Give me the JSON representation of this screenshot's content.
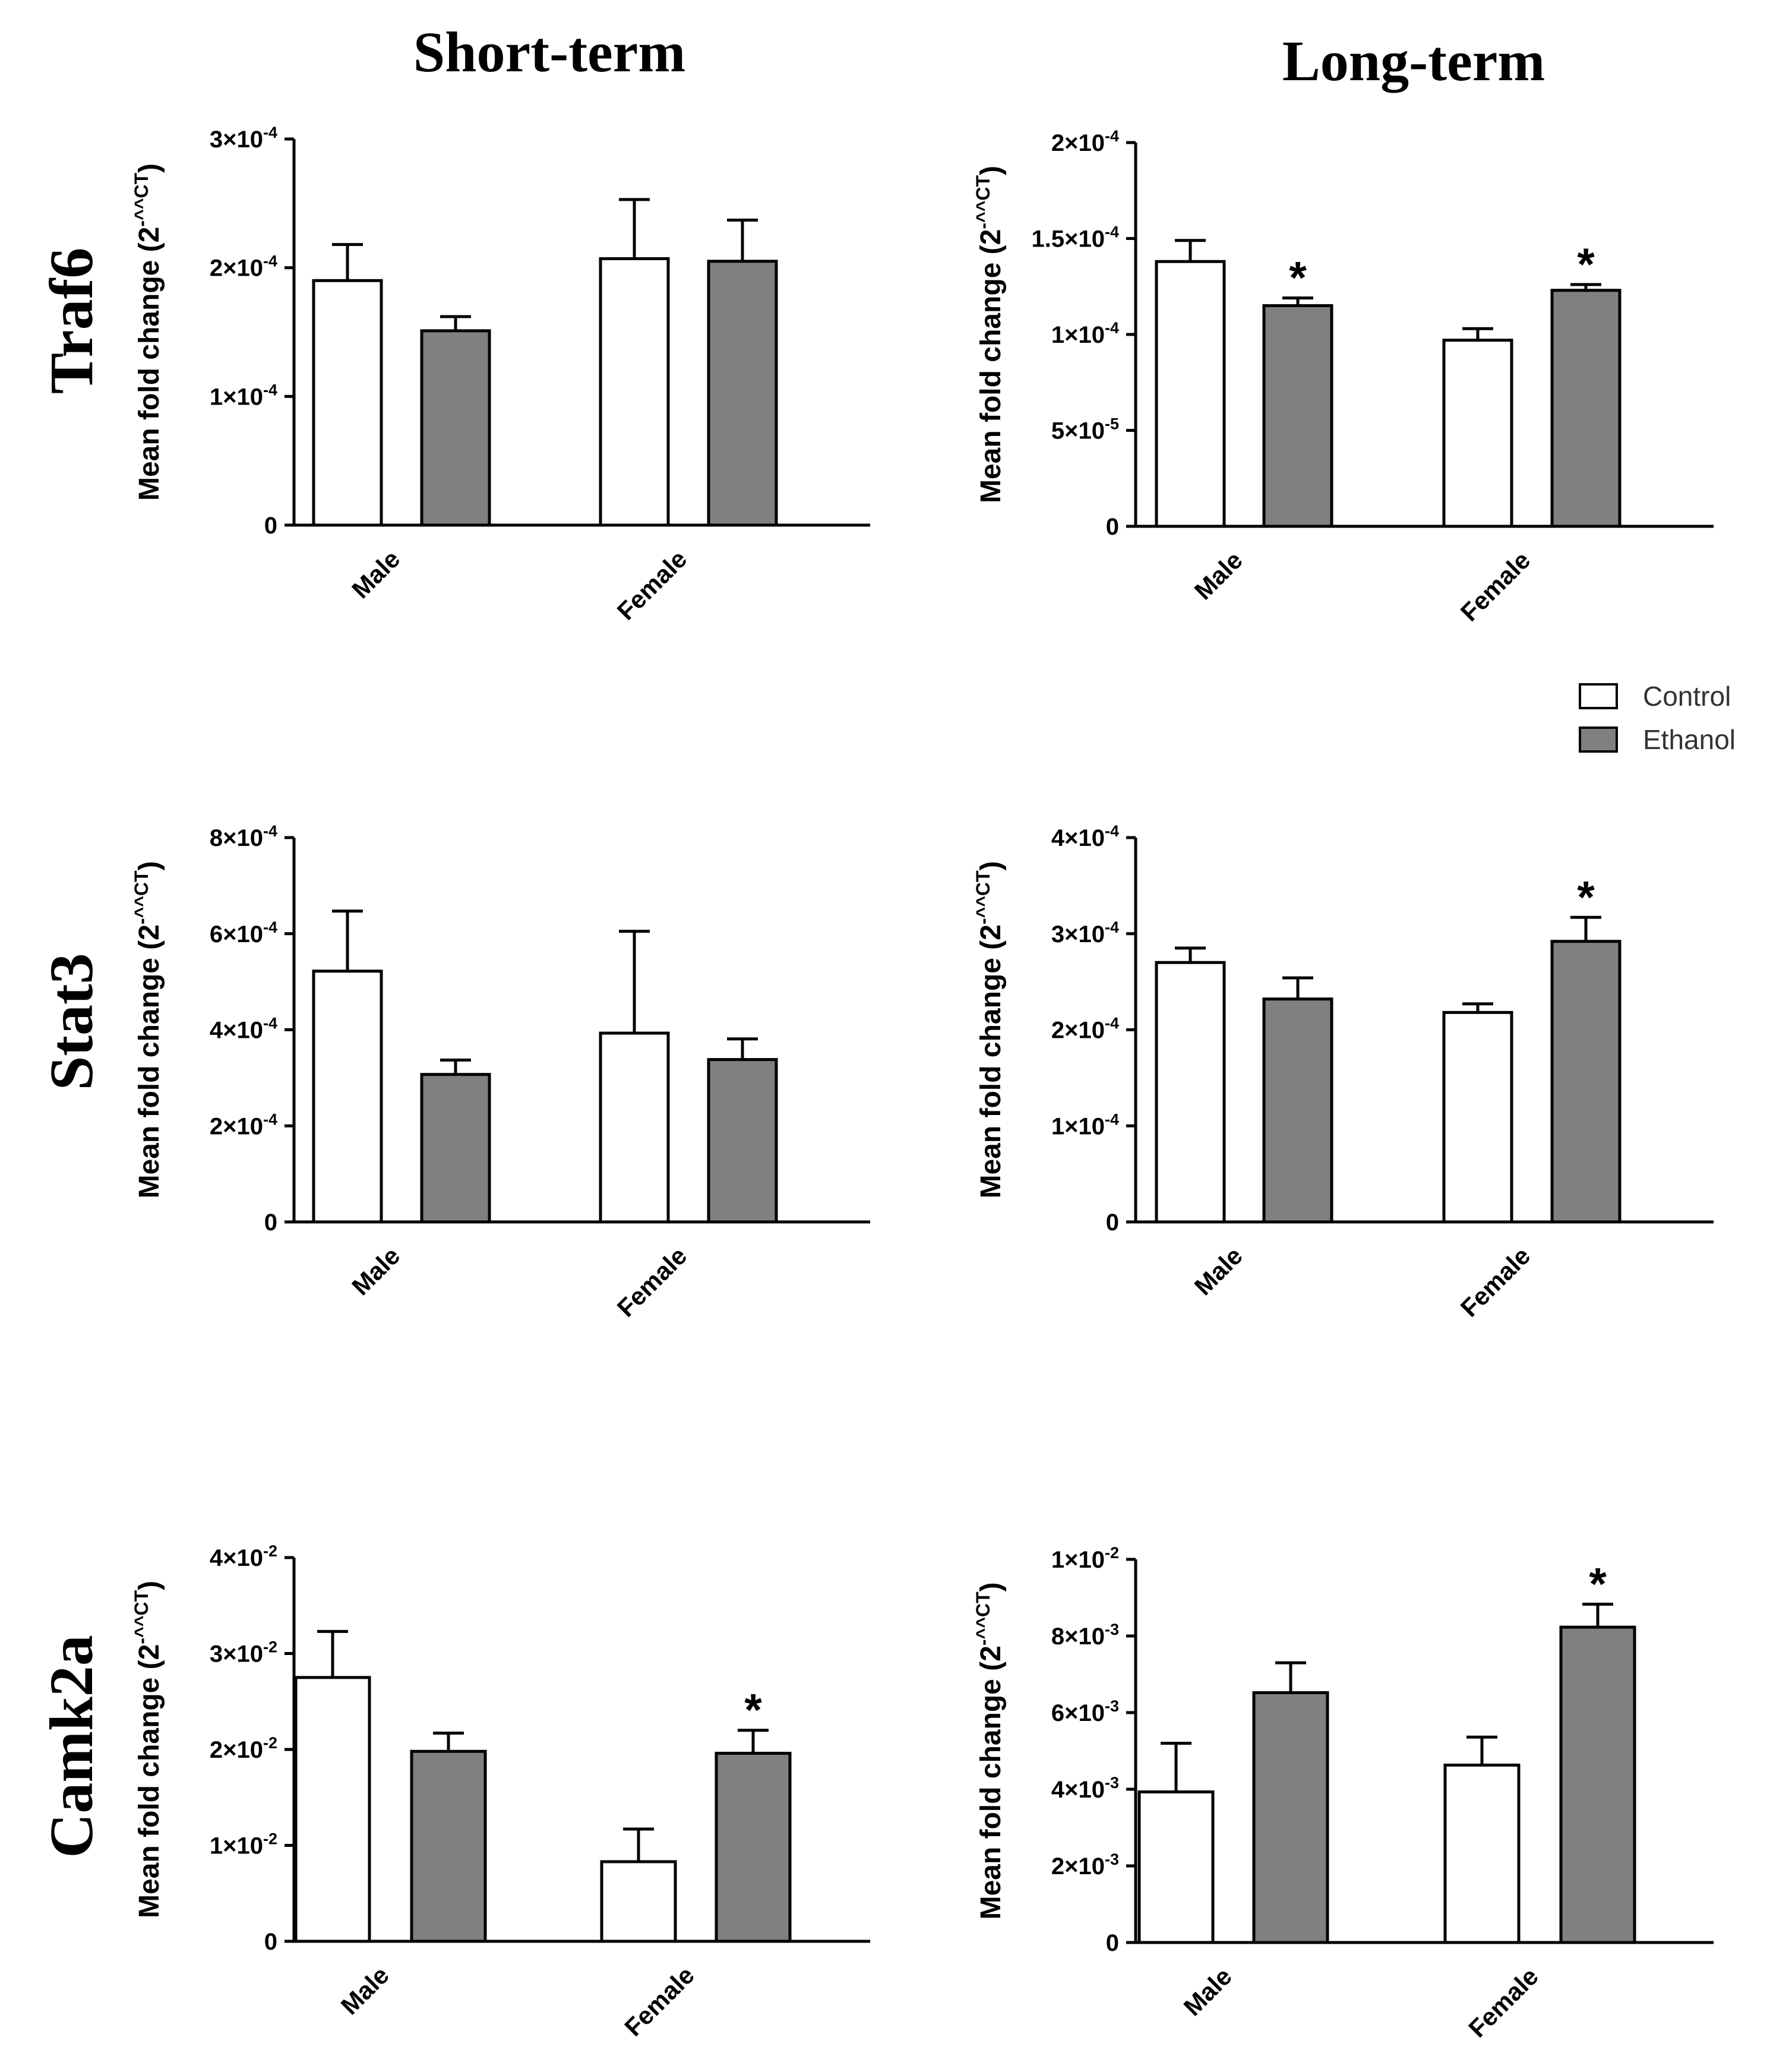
{
  "figure": {
    "column_titles": [
      "Short-term",
      "Long-term"
    ],
    "row_titles": [
      "Traf6",
      "Stat3",
      "Camk2a"
    ],
    "ylabel_main": "Mean fold change (2",
    "ylabel_sup": "-^^CT",
    "ylabel_close": ")",
    "legend": [
      {
        "label": "Control",
        "color": "#ffffff"
      },
      {
        "label": "Ethanol",
        "color": "#808080"
      }
    ]
  },
  "colors": {
    "control": "#ffffff",
    "ethanol": "#808080",
    "stroke": "#000000"
  },
  "chart_data": [
    {
      "type": "bar",
      "title": "Traf6 Short-term",
      "xlabel": "",
      "ylabel": "Mean fold change (2-^^CT)",
      "categories": [
        "Male",
        "Female"
      ],
      "ylim": [
        0,
        0.0003
      ],
      "yticks": [
        0,
        0.0001,
        0.0002,
        0.0003
      ],
      "ytick_labels": [
        {
          "mantissa": "0",
          "exponent": ""
        },
        {
          "mantissa": "1×10",
          "exponent": "-4"
        },
        {
          "mantissa": "2×10",
          "exponent": "-4"
        },
        {
          "mantissa": "3×10",
          "exponent": "-4"
        }
      ],
      "series": [
        {
          "name": "Control",
          "values": [
            0.00019,
            0.000207
          ],
          "errors": [
            2.8e-05,
            4.6e-05
          ],
          "significant": [
            false,
            false
          ]
        },
        {
          "name": "Ethanol",
          "values": [
            0.000151,
            0.000205
          ],
          "errors": [
            1.1e-05,
            3.2e-05
          ],
          "significant": [
            false,
            false
          ]
        }
      ]
    },
    {
      "type": "bar",
      "title": "Traf6 Long-term",
      "xlabel": "",
      "ylabel": "Mean fold change (2-^^CT)",
      "categories": [
        "Male",
        "Female"
      ],
      "ylim": [
        0,
        0.0002
      ],
      "yticks": [
        0,
        5e-05,
        0.0001,
        0.00015,
        0.0002
      ],
      "ytick_labels": [
        {
          "mantissa": "0",
          "exponent": ""
        },
        {
          "mantissa": "5×10",
          "exponent": "-5"
        },
        {
          "mantissa": "1×10",
          "exponent": "-4"
        },
        {
          "mantissa": "1.5×10",
          "exponent": "-4"
        },
        {
          "mantissa": "2×10",
          "exponent": "-4"
        }
      ],
      "series": [
        {
          "name": "Control",
          "values": [
            0.000138,
            9.7e-05
          ],
          "errors": [
            1.1e-05,
            6e-06
          ],
          "significant": [
            false,
            false
          ]
        },
        {
          "name": "Ethanol",
          "values": [
            0.000115,
            0.000123
          ],
          "errors": [
            4e-06,
            3e-06
          ],
          "significant": [
            true,
            true
          ]
        }
      ]
    },
    {
      "type": "bar",
      "title": "Stat3 Short-term",
      "xlabel": "",
      "ylabel": "Mean fold change (2-^^CT)",
      "categories": [
        "Male",
        "Female"
      ],
      "ylim": [
        0,
        0.0008
      ],
      "yticks": [
        0,
        0.0002,
        0.0004,
        0.0006,
        0.0008
      ],
      "ytick_labels": [
        {
          "mantissa": "0",
          "exponent": ""
        },
        {
          "mantissa": "2×10",
          "exponent": "-4"
        },
        {
          "mantissa": "4×10",
          "exponent": "-4"
        },
        {
          "mantissa": "6×10",
          "exponent": "-4"
        },
        {
          "mantissa": "8×10",
          "exponent": "-4"
        }
      ],
      "series": [
        {
          "name": "Control",
          "values": [
            0.000522,
            0.000393
          ],
          "errors": [
            0.000125,
            0.000212
          ],
          "significant": [
            false,
            false
          ]
        },
        {
          "name": "Ethanol",
          "values": [
            0.000307,
            0.000338
          ],
          "errors": [
            3e-05,
            4.3e-05
          ],
          "significant": [
            false,
            false
          ]
        }
      ]
    },
    {
      "type": "bar",
      "title": "Stat3 Long-term",
      "xlabel": "",
      "ylabel": "Mean fold change (2-^^CT)",
      "categories": [
        "Male",
        "Female"
      ],
      "ylim": [
        0,
        0.0004
      ],
      "yticks": [
        0,
        0.0001,
        0.0002,
        0.0003,
        0.0004
      ],
      "ytick_labels": [
        {
          "mantissa": "0",
          "exponent": ""
        },
        {
          "mantissa": "1×10",
          "exponent": "-4"
        },
        {
          "mantissa": "2×10",
          "exponent": "-4"
        },
        {
          "mantissa": "3×10",
          "exponent": "-4"
        },
        {
          "mantissa": "4×10",
          "exponent": "-4"
        }
      ],
      "series": [
        {
          "name": "Control",
          "values": [
            0.00027,
            0.000218
          ],
          "errors": [
            1.5e-05,
            9e-06
          ],
          "significant": [
            false,
            false
          ]
        },
        {
          "name": "Ethanol",
          "values": [
            0.000232,
            0.000292
          ],
          "errors": [
            2.2e-05,
            2.5e-05
          ],
          "significant": [
            false,
            true
          ]
        }
      ]
    },
    {
      "type": "bar",
      "title": "Camk2a Short-term",
      "xlabel": "",
      "ylabel": "Mean fold change (2-^^CT)",
      "categories": [
        "Male",
        "Female"
      ],
      "ylim": [
        0,
        0.04
      ],
      "yticks": [
        0,
        0.01,
        0.02,
        0.03,
        0.04
      ],
      "ytick_labels": [
        {
          "mantissa": "0",
          "exponent": ""
        },
        {
          "mantissa": "1×10",
          "exponent": "-2"
        },
        {
          "mantissa": "2×10",
          "exponent": "-2"
        },
        {
          "mantissa": "3×10",
          "exponent": "-2"
        },
        {
          "mantissa": "4×10",
          "exponent": "-2"
        }
      ],
      "series": [
        {
          "name": "Control",
          "values": [
            0.0275,
            0.0083
          ],
          "errors": [
            0.0048,
            0.0034
          ],
          "significant": [
            false,
            false
          ]
        },
        {
          "name": "Ethanol",
          "values": [
            0.0198,
            0.0196
          ],
          "errors": [
            0.0019,
            0.0024
          ],
          "significant": [
            false,
            true
          ]
        }
      ]
    },
    {
      "type": "bar",
      "title": "Camk2a Long-term",
      "xlabel": "",
      "ylabel": "Mean fold change (2-^^CT)",
      "categories": [
        "Male",
        "Female"
      ],
      "ylim": [
        0,
        0.01
      ],
      "yticks": [
        0,
        0.002,
        0.004,
        0.006,
        0.008,
        0.01
      ],
      "ytick_labels": [
        {
          "mantissa": "0",
          "exponent": ""
        },
        {
          "mantissa": "2×10",
          "exponent": "-3"
        },
        {
          "mantissa": "4×10",
          "exponent": "-3"
        },
        {
          "mantissa": "6×10",
          "exponent": "-3"
        },
        {
          "mantissa": "8×10",
          "exponent": "-3"
        },
        {
          "mantissa": "1×10",
          "exponent": "-2"
        }
      ],
      "series": [
        {
          "name": "Control",
          "values": [
            0.00393,
            0.00463
          ],
          "errors": [
            0.00127,
            0.00073
          ],
          "significant": [
            false,
            false
          ]
        },
        {
          "name": "Ethanol",
          "values": [
            0.00652,
            0.00823
          ],
          "errors": [
            0.00078,
            0.0006
          ],
          "significant": [
            false,
            true
          ]
        }
      ]
    }
  ]
}
